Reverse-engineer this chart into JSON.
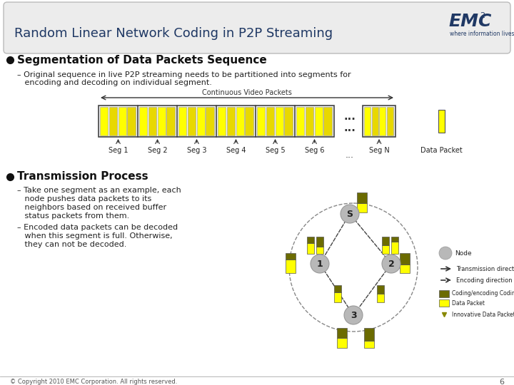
{
  "title": "Random Linear Network Coding in P2P Streaming",
  "slide_bg": "#ffffff",
  "header_bg": "#ececec",
  "title_color": "#1f3864",
  "bullet1": "Segmentation of Data Packets Sequence",
  "bullet1_line1": "– Original sequence in live P2P streaming needs to be partitioned into segments for",
  "bullet1_line2": "   encoding and decoding on individual segment.",
  "seg_labels": [
    "Seg 1",
    "Seg 2",
    "Seg 3",
    "Seg 4",
    "Seg 5",
    "Seg 6"
  ],
  "continuous_label": "Continuous Video Packets",
  "data_packet_label": "Data Packet",
  "bullet2": "Transmission Process",
  "bullet2_sub1_lines": [
    "– Take one segment as an example, each",
    "   node pushes data packets to its",
    "   neighbors based on received buffer",
    "   status packets from them."
  ],
  "bullet2_sub2_lines": [
    "– Encoded data packets can be decoded",
    "   when this segment is full. Otherwise,",
    "   they can not be decoded."
  ],
  "footer": "© Copyright 2010 EMC Corporation. All rights reserved.",
  "page_num": "6",
  "yellow": "#ffff00",
  "dark_olive": "#6b6b00",
  "gray_node": "#b8b8b8",
  "emc_blue": "#1f3864"
}
